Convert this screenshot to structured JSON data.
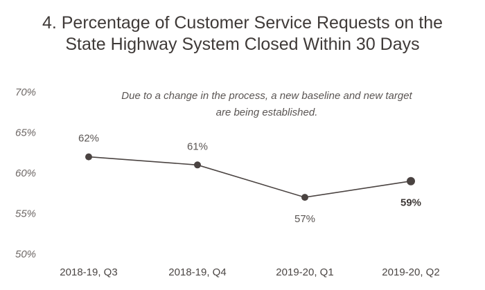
{
  "chart_data": {
    "type": "line",
    "title_lines": [
      "4. Percentage of Customer Service Requests on the",
      "State Highway System Closed Within 30 Days"
    ],
    "categories": [
      "2018-19, Q3",
      "2018-19, Q4",
      "2019-20, Q1",
      "2019-20, Q2"
    ],
    "values": [
      62,
      61,
      57,
      59
    ],
    "data_labels": [
      "62%",
      "61%",
      "57%",
      "59%"
    ],
    "ylim": [
      50,
      70
    ],
    "yticks": [
      70,
      65,
      60,
      55,
      50
    ],
    "ytick_labels": [
      "70%",
      "65%",
      "60%",
      "55%",
      "50%"
    ],
    "annotation_lines": [
      "Due to a change in the process, a new baseline and new target",
      "are being established."
    ],
    "grid": false,
    "legend": "none",
    "colors": {
      "line": "#4a4341",
      "marker": "#4a4341",
      "text": "#3f3a38"
    }
  }
}
